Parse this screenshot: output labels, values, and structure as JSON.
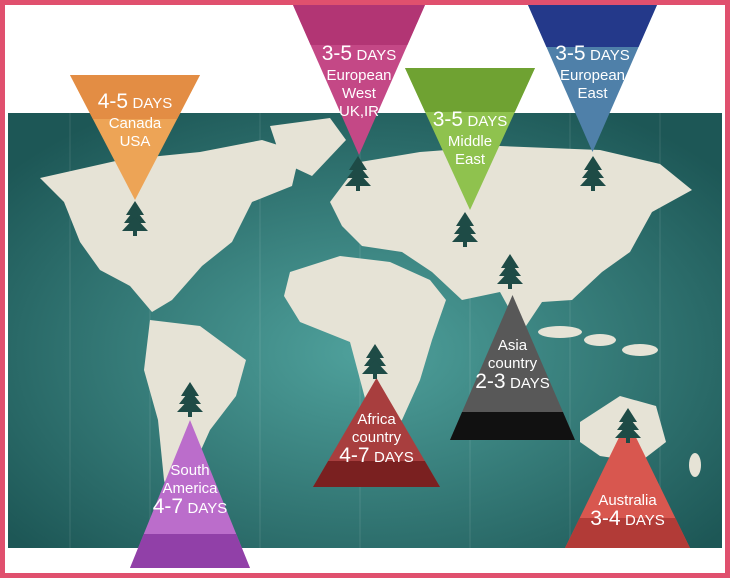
{
  "markers": [
    {
      "days": "4-5",
      "unit": "DAYS",
      "lines": [
        "Canada",
        "USA"
      ]
    },
    {
      "days": "3-5",
      "unit": "DAYS",
      "lines": [
        "European",
        "West",
        "UK,IR"
      ]
    },
    {
      "days": "3-5",
      "unit": "DAYS",
      "lines": [
        "Middle",
        "East"
      ]
    },
    {
      "days": "3-5",
      "unit": "DAYS",
      "lines": [
        "European",
        "East"
      ]
    },
    {
      "lines": [
        "Asia",
        "country"
      ],
      "days": "2-3",
      "unit": "DAYS"
    },
    {
      "lines": [
        "Africa",
        "country"
      ],
      "days": "4-7",
      "unit": "DAYS"
    },
    {
      "lines": [
        "South",
        "America"
      ],
      "days": "4-7",
      "unit": "DAYS"
    },
    {
      "lines": [
        "Australia"
      ],
      "days": "3-4",
      "unit": "DAYS"
    }
  ]
}
